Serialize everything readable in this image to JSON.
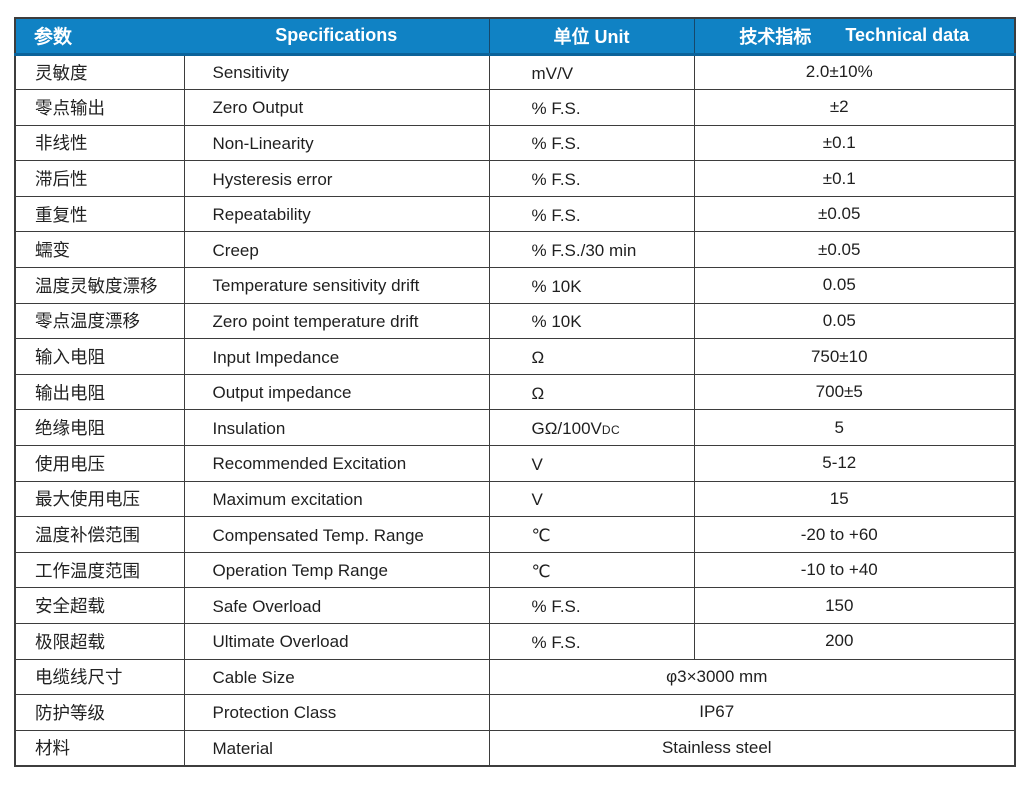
{
  "table": {
    "colors": {
      "header_bg": "#1082c4",
      "header_bottom_edge": "#0b639a",
      "header_text": "#ffffff",
      "grid_line": "#3d3d3d",
      "body_text": "#1f1f1f"
    },
    "header": {
      "parameters": "参数",
      "specifications": "Specifications",
      "unit": "单位 Unit",
      "technical_zh": "技术指标",
      "technical_en": "Technical data"
    },
    "rows": [
      {
        "zh": "灵敏度",
        "en": "Sensitivity",
        "unit": "mV/V",
        "value": "2.0±10%"
      },
      {
        "zh": "零点输出",
        "en": "Zero Output",
        "unit": "% F.S.",
        "value": "±2"
      },
      {
        "zh": "非线性",
        "en": "Non-Linearity",
        "unit": "% F.S.",
        "value": "±0.1"
      },
      {
        "zh": "滞后性",
        "en": "Hysteresis error",
        "unit": "% F.S.",
        "value": "±0.1"
      },
      {
        "zh": "重复性",
        "en": "Repeatability",
        "unit": "% F.S.",
        "value": "±0.05"
      },
      {
        "zh": "蠕变",
        "en": "Creep",
        "unit": "% F.S./30 min",
        "value": "±0.05"
      },
      {
        "zh": "温度灵敏度漂移",
        "en": "Temperature sensitivity drift",
        "unit": "% 10K",
        "value": "0.05"
      },
      {
        "zh": "零点温度漂移",
        "en": "Zero point temperature drift",
        "unit": "% 10K",
        "value": "0.05"
      },
      {
        "zh": "输入电阻",
        "en": "Input Impedance",
        "unit": "Ω",
        "value": "750±10"
      },
      {
        "zh": "输出电阻",
        "en": "Output impedance",
        "unit": "Ω",
        "value": "700±5"
      },
      {
        "zh": "绝缘电阻",
        "en": "Insulation",
        "unit": "GΩ/100V",
        "unit_small": "DC",
        "value": "5"
      },
      {
        "zh": "使用电压",
        "en": "Recommended Excitation",
        "unit": "V",
        "value": "5-12"
      },
      {
        "zh": "最大使用电压",
        "en": "Maximum excitation",
        "unit": "V",
        "value": "15"
      },
      {
        "zh": "温度补偿范围",
        "en": "Compensated Temp. Range",
        "unit": "℃",
        "value": "-20 to +60"
      },
      {
        "zh": "工作温度范围",
        "en": "Operation Temp Range",
        "unit": "℃",
        "value": "-10 to +40"
      },
      {
        "zh": "安全超载",
        "en": "Safe Overload",
        "unit": "% F.S.",
        "value": "150"
      },
      {
        "zh": "极限超载",
        "en": "Ultimate Overload",
        "unit": "% F.S.",
        "value": "200"
      },
      {
        "zh": "电缆线尺寸",
        "en": "Cable Size",
        "merged": "φ3×3000 mm"
      },
      {
        "zh": "防护等级",
        "en": "Protection Class",
        "merged": "IP67"
      },
      {
        "zh": "材料",
        "en": "Material",
        "merged": "Stainless steel"
      }
    ]
  }
}
